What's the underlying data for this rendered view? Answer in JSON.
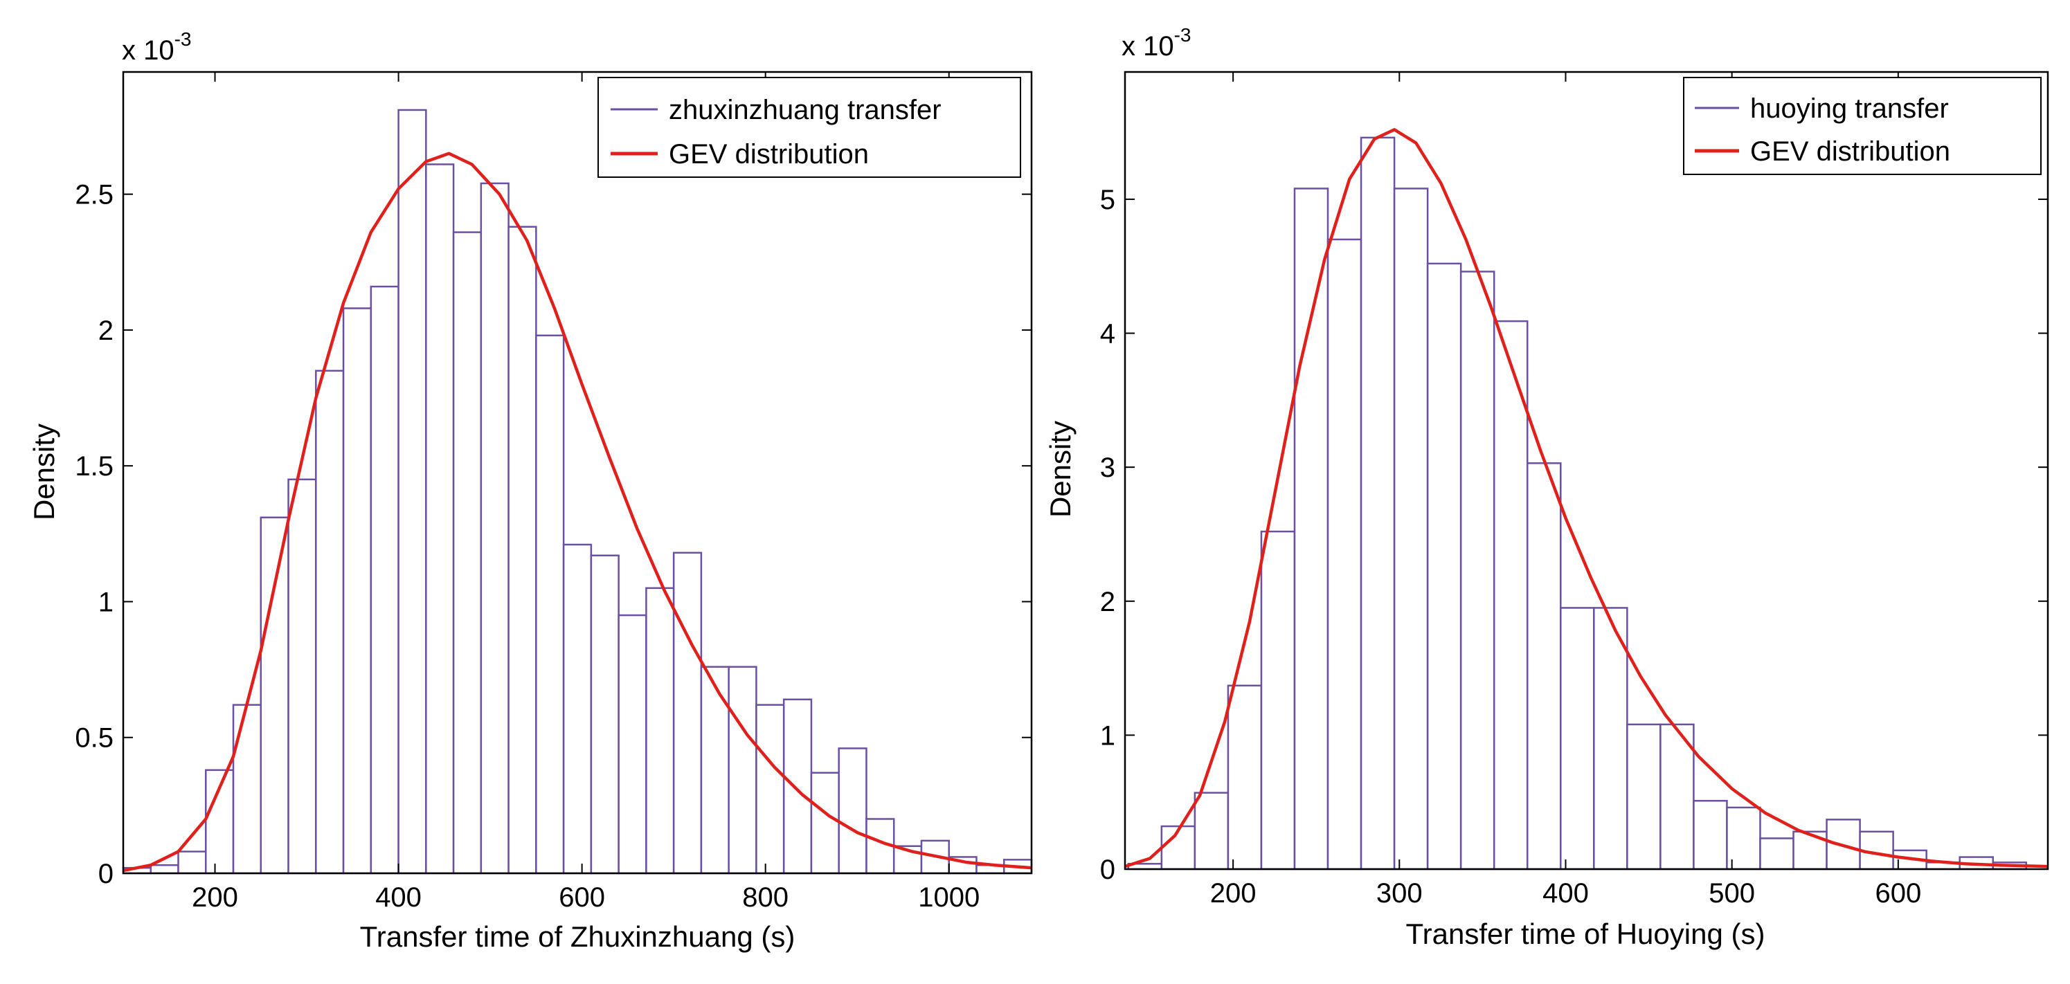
{
  "chart_data": [
    {
      "type": "histogram",
      "title": "",
      "xlabel": "Transfer time of Zhuxinzhuang (s)",
      "ylabel": "Density",
      "exponent_label": "x 10",
      "exponent_power": "-3",
      "xlim": [
        100,
        1090
      ],
      "ylim": [
        0,
        2.95
      ],
      "xticks": [
        200,
        400,
        600,
        800,
        1000
      ],
      "yticks": [
        0,
        0.5,
        1,
        1.5,
        2,
        2.5
      ],
      "ytick_labels": [
        "0",
        "0.5",
        "1",
        "1.5",
        "2",
        "2.5"
      ],
      "grid": false,
      "legend": {
        "position": "top-right",
        "entries": [
          "zhuxinzhuang transfer",
          "GEV distribution"
        ]
      },
      "colors": {
        "bars": "#6a4fa3",
        "curve": "#e0201b"
      },
      "bins": {
        "start": 100,
        "width": 30,
        "values": [
          0.02,
          0.03,
          0.08,
          0.38,
          0.62,
          1.31,
          1.45,
          1.85,
          2.08,
          2.16,
          2.81,
          2.61,
          2.36,
          2.54,
          2.38,
          1.98,
          1.21,
          1.17,
          0.95,
          1.05,
          1.18,
          0.76,
          0.76,
          0.62,
          0.64,
          0.37,
          0.46,
          0.2,
          0.1,
          0.12,
          0.06,
          0.03,
          0.05
        ]
      },
      "fit_curve": {
        "name": "GEV distribution",
        "x": [
          100,
          130,
          160,
          190,
          220,
          250,
          280,
          310,
          340,
          370,
          400,
          430,
          455,
          480,
          510,
          540,
          570,
          600,
          630,
          660,
          690,
          720,
          750,
          780,
          810,
          840,
          870,
          900,
          930,
          960,
          990,
          1020,
          1050,
          1090
        ],
        "y": [
          0.01,
          0.03,
          0.08,
          0.2,
          0.43,
          0.82,
          1.3,
          1.75,
          2.1,
          2.36,
          2.52,
          2.62,
          2.65,
          2.61,
          2.5,
          2.33,
          2.08,
          1.8,
          1.53,
          1.27,
          1.04,
          0.84,
          0.66,
          0.51,
          0.39,
          0.29,
          0.21,
          0.15,
          0.11,
          0.08,
          0.06,
          0.04,
          0.03,
          0.02
        ]
      }
    },
    {
      "type": "histogram",
      "title": "",
      "xlabel": "Transfer time of Huoying (s)",
      "ylabel": "Density",
      "exponent_label": "x 10",
      "exponent_power": "-3",
      "xlim": [
        135,
        690
      ],
      "ylim": [
        0,
        5.95
      ],
      "xticks": [
        200,
        300,
        400,
        500,
        600
      ],
      "yticks": [
        0,
        1,
        2,
        3,
        4,
        5
      ],
      "ytick_labels": [
        "0",
        "1",
        "2",
        "3",
        "4",
        "5"
      ],
      "grid": false,
      "legend": {
        "position": "top-right",
        "entries": [
          "huoying transfer",
          "GEV distribution"
        ]
      },
      "colors": {
        "bars": "#6a4fa3",
        "curve": "#e0201b"
      },
      "bins": {
        "start": 137,
        "width": 20,
        "values": [
          0.04,
          0.32,
          0.57,
          1.37,
          2.52,
          5.08,
          4.7,
          5.46,
          5.08,
          4.52,
          4.46,
          4.09,
          3.03,
          1.95,
          1.95,
          1.08,
          1.08,
          0.51,
          0.46,
          0.23,
          0.28,
          0.37,
          0.28,
          0.14,
          0.05,
          0.09,
          0.05
        ]
      },
      "fit_curve": {
        "name": "GEV distribution",
        "x": [
          135,
          150,
          165,
          180,
          195,
          210,
          225,
          240,
          255,
          270,
          285,
          297,
          310,
          325,
          340,
          355,
          370,
          385,
          400,
          415,
          430,
          445,
          460,
          480,
          500,
          520,
          540,
          560,
          580,
          600,
          620,
          640,
          660,
          690
        ],
        "y": [
          0.02,
          0.08,
          0.25,
          0.55,
          1.1,
          1.85,
          2.8,
          3.75,
          4.55,
          5.15,
          5.45,
          5.52,
          5.42,
          5.12,
          4.7,
          4.2,
          3.66,
          3.12,
          2.62,
          2.18,
          1.78,
          1.44,
          1.15,
          0.84,
          0.6,
          0.42,
          0.29,
          0.2,
          0.13,
          0.09,
          0.06,
          0.04,
          0.03,
          0.02
        ]
      }
    }
  ]
}
